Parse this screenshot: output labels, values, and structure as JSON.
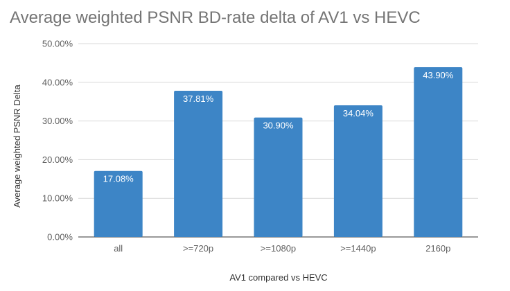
{
  "chart_data": {
    "type": "bar",
    "title": "Average weighted PSNR BD-rate delta of AV1 vs HEVC",
    "xlabel": "AV1 compared vs HEVC",
    "ylabel": "Average weighted PSNR Delta",
    "categories": [
      "all",
      ">=720p",
      ">=1080p",
      ">=1440p",
      "2160p"
    ],
    "values": [
      17.08,
      37.81,
      30.9,
      34.04,
      43.9
    ],
    "value_labels": [
      "17.08%",
      "37.81%",
      "30.90%",
      "34.04%",
      "43.90%"
    ],
    "ylim": [
      0,
      50
    ],
    "yticks": [
      0,
      10,
      20,
      30,
      40,
      50
    ],
    "ytick_labels": [
      "0.00%",
      "10.00%",
      "20.00%",
      "30.00%",
      "40.00%",
      "50.00%"
    ],
    "grid": true,
    "legend": "none",
    "colors": {
      "bar": "#3d85c6",
      "title": "#757575",
      "grid": "#d9d9d9",
      "tick_text": "#5f5f5f",
      "axis_text": "#333333",
      "value_text": "#ffffff"
    }
  }
}
